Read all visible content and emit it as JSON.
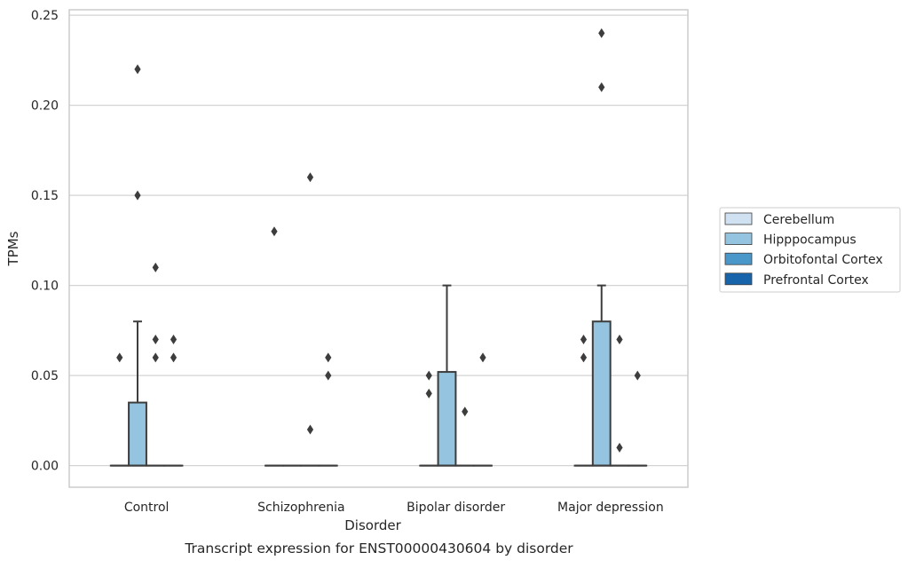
{
  "chart_data": {
    "type": "box",
    "title": "Transcript expression for ENST00000430604 by disorder",
    "xlabel": "Disorder",
    "ylabel": "TPMs",
    "ylim": [
      -0.012,
      0.253
    ],
    "yticks": [
      0.0,
      0.05,
      0.1,
      0.15,
      0.2,
      0.25
    ],
    "ytick_labels": [
      "0.00",
      "0.05",
      "0.10",
      "0.15",
      "0.20",
      "0.25"
    ],
    "categories": [
      "Control",
      "Schizophrenia",
      "Bipolar disorder",
      "Major depression"
    ],
    "grid": true,
    "legend_position": "right",
    "colors": {
      "Cerebellum": "#d0e1f2",
      "Hipppocampus": "#94c4df",
      "Orbitofontal Cortex": "#4a98c9",
      "Prefrontal Cortex": "#1764ab",
      "box_edge": "#3d3d3d",
      "grid": "#d3d3d3"
    },
    "series": [
      {
        "name": "Cerebellum",
        "boxes": [
          {
            "category": "Control",
            "min": 0,
            "q1": 0,
            "median": 0,
            "q3": 0,
            "max": 0,
            "outliers": [
              0.06
            ]
          },
          {
            "category": "Schizophrenia",
            "min": 0,
            "q1": 0,
            "median": 0,
            "q3": 0,
            "max": 0,
            "outliers": [
              0.13
            ]
          },
          {
            "category": "Bipolar disorder",
            "min": 0,
            "q1": 0,
            "median": 0,
            "q3": 0,
            "max": 0,
            "outliers": [
              0.05,
              0.04
            ]
          },
          {
            "category": "Major depression",
            "min": 0,
            "q1": 0,
            "median": 0,
            "q3": 0,
            "max": 0,
            "outliers": [
              0.07,
              0.06
            ]
          }
        ]
      },
      {
        "name": "Hipppocampus",
        "boxes": [
          {
            "category": "Control",
            "min": 0,
            "q1": 0,
            "median": 0,
            "q3": 0.035,
            "max": 0.08,
            "outliers": [
              0.22,
              0.15
            ]
          },
          {
            "category": "Schizophrenia",
            "min": 0,
            "q1": 0,
            "median": 0,
            "q3": 0,
            "max": 0,
            "outliers": []
          },
          {
            "category": "Bipolar disorder",
            "min": 0,
            "q1": 0,
            "median": 0,
            "q3": 0.052,
            "max": 0.1,
            "outliers": []
          },
          {
            "category": "Major depression",
            "min": 0,
            "q1": 0,
            "median": 0,
            "q3": 0.08,
            "max": 0.1,
            "outliers": [
              0.24,
              0.21
            ]
          }
        ]
      },
      {
        "name": "Orbitofontal Cortex",
        "boxes": [
          {
            "category": "Control",
            "min": 0,
            "q1": 0,
            "median": 0,
            "q3": 0,
            "max": 0,
            "outliers": [
              0.11,
              0.07,
              0.06
            ]
          },
          {
            "category": "Schizophrenia",
            "min": 0,
            "q1": 0,
            "median": 0,
            "q3": 0,
            "max": 0,
            "outliers": [
              0.16,
              0.02
            ]
          },
          {
            "category": "Bipolar disorder",
            "min": 0,
            "q1": 0,
            "median": 0,
            "q3": 0,
            "max": 0,
            "outliers": [
              0.03
            ]
          },
          {
            "category": "Major depression",
            "min": 0,
            "q1": 0,
            "median": 0,
            "q3": 0,
            "max": 0,
            "outliers": [
              0.07,
              0.01
            ]
          }
        ]
      },
      {
        "name": "Prefrontal Cortex",
        "boxes": [
          {
            "category": "Control",
            "min": 0,
            "q1": 0,
            "median": 0,
            "q3": 0,
            "max": 0,
            "outliers": [
              0.07,
              0.06
            ]
          },
          {
            "category": "Schizophrenia",
            "min": 0,
            "q1": 0,
            "median": 0,
            "q3": 0,
            "max": 0,
            "outliers": [
              0.06,
              0.05
            ]
          },
          {
            "category": "Bipolar disorder",
            "min": 0,
            "q1": 0,
            "median": 0,
            "q3": 0,
            "max": 0,
            "outliers": [
              0.06
            ]
          },
          {
            "category": "Major depression",
            "min": 0,
            "q1": 0,
            "median": 0,
            "q3": 0,
            "max": 0,
            "outliers": [
              0.05
            ]
          }
        ]
      }
    ]
  }
}
